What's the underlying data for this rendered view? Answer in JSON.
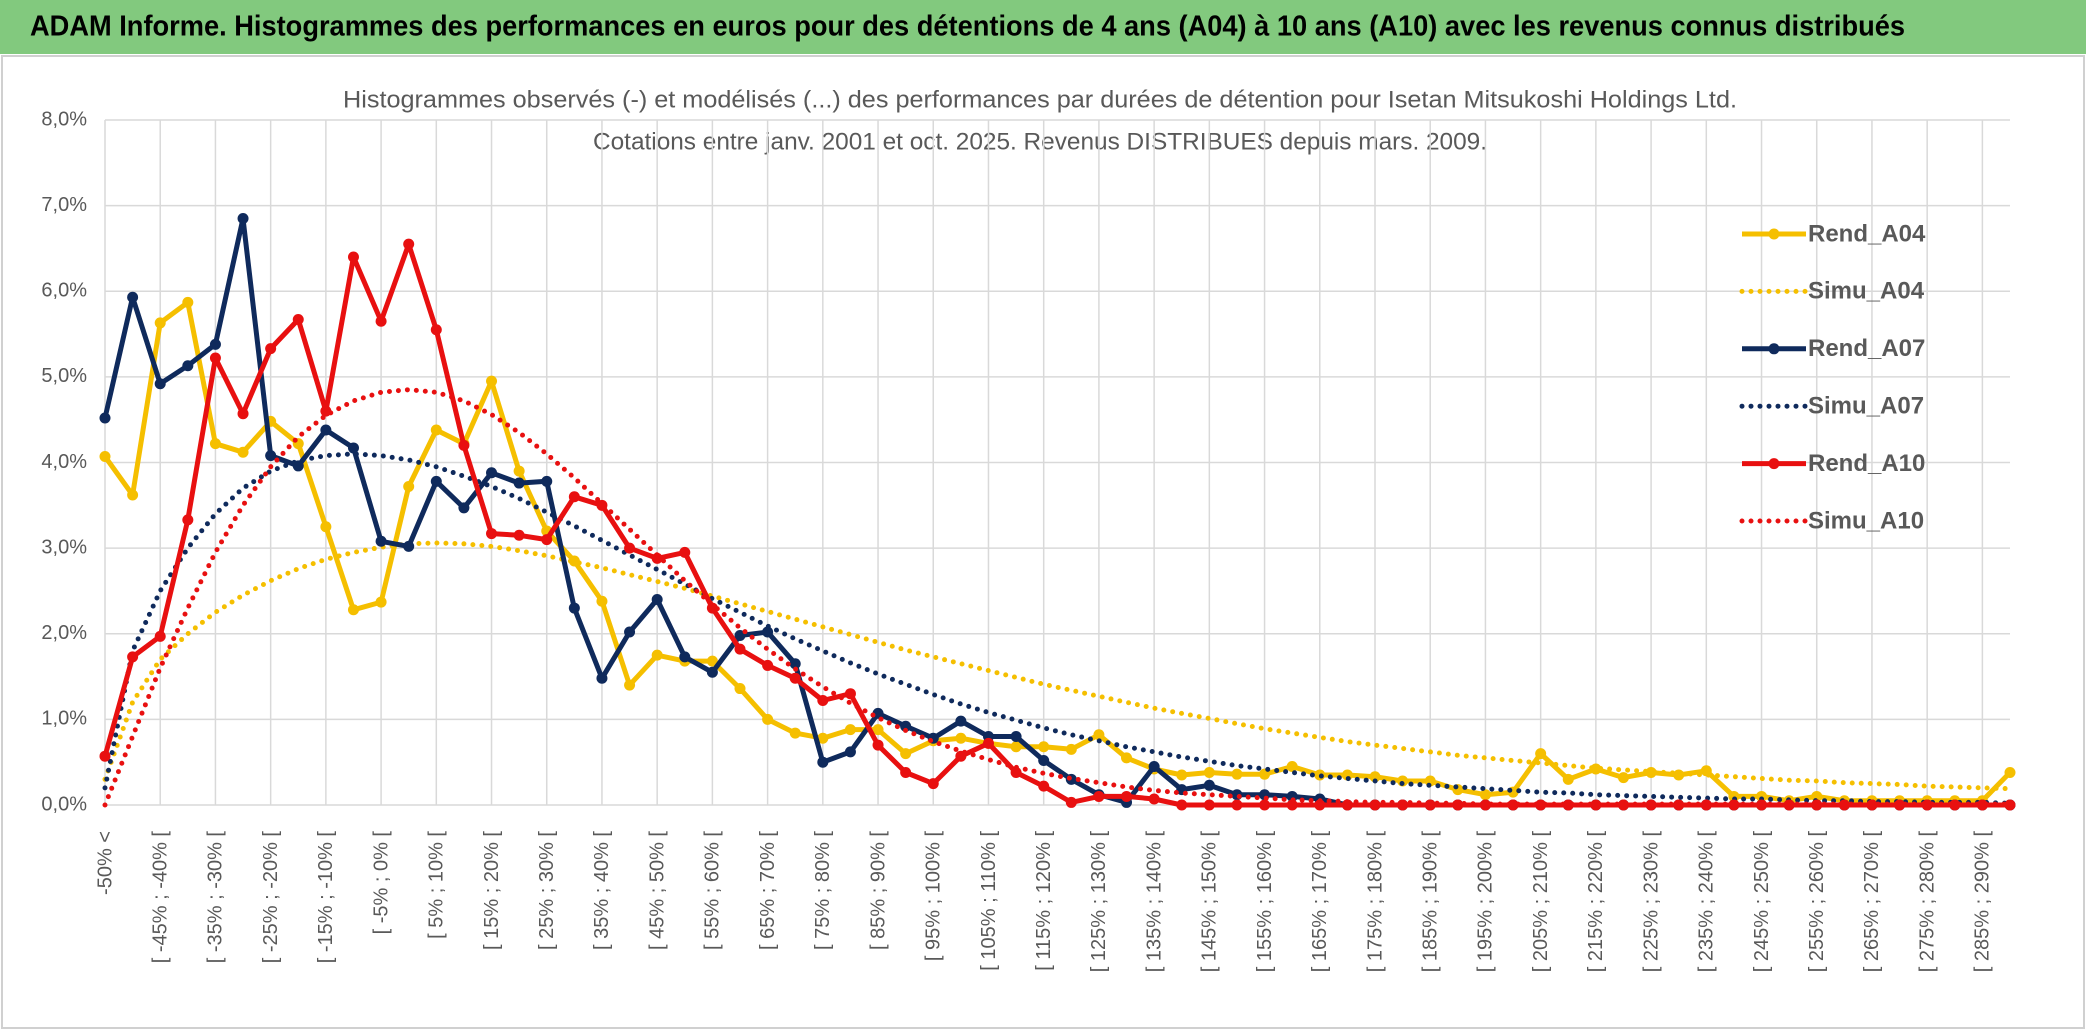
{
  "chart_data": {
    "type": "line",
    "title": "ADAM Informe. Histogrammes des performances en euros pour des détentions de 4 ans (A04) à 10 ans (A10) avec les revenus connus distribués",
    "subtitle": [
      "Histogrammes observés (-) et modélisés (...) des performances par durées de détention pour Isetan Mitsukoshi Holdings Ltd.",
      "Cotations entre janv. 2001 et oct. 2025. Revenus DISTRIBUES depuis mars. 2009."
    ],
    "categories": [
      "-50% <",
      null,
      "[ -45% ; -40% [",
      null,
      "[ -35% ; -30% [",
      null,
      "[ -25% ; -20% [",
      null,
      "[ -15% ; -10% [",
      null,
      "[ -5% ; 0% [",
      null,
      "[ 5% ; 10% [",
      null,
      "[ 15% ; 20% [",
      null,
      "[ 25% ; 30% [",
      null,
      "[ 35% ; 40% [",
      null,
      "[ 45% ; 50% [",
      null,
      "[ 55% ; 60% [",
      null,
      "[ 65% ; 70% [",
      null,
      "[ 75% ; 80% [",
      null,
      "[ 85% ; 90% [",
      null,
      "[ 95% ; 100% [",
      null,
      "[ 105% ; 110% [",
      null,
      "[ 115% ; 120% [",
      null,
      "[ 125% ; 130% [",
      null,
      "[ 135% ; 140% [",
      null,
      "[ 145% ; 150% [",
      null,
      "[ 155% ; 160% [",
      null,
      "[ 165% ; 170% [",
      null,
      "[ 175% ; 180% [",
      null,
      "[ 185% ; 190% [",
      null,
      "[ 195% ; 200% [",
      null,
      "[ 205% ; 210% [",
      null,
      "[ 215% ; 220% [",
      null,
      "[ 225% ; 230% [",
      null,
      "[ 235% ; 240% [",
      null,
      "[ 245% ; 250% [",
      null,
      "[ 255% ; 260% [",
      null,
      "[ 265% ; 270% [",
      null,
      "[ 275% ; 280% [",
      null,
      "[ 285% ; 290% [",
      null
    ],
    "series": [
      {
        "name": "Rend_A04",
        "color": "#f5bf00",
        "line_style": "solid",
        "markers": true,
        "values": [
          4.07,
          3.62,
          5.63,
          5.87,
          4.22,
          4.12,
          4.48,
          4.22,
          3.25,
          2.28,
          2.37,
          3.72,
          4.38,
          4.22,
          4.95,
          3.9,
          3.2,
          2.85,
          2.38,
          1.4,
          1.75,
          1.68,
          1.68,
          1.36,
          1.0,
          0.84,
          0.78,
          0.88,
          0.88,
          0.6,
          0.75,
          0.78,
          0.72,
          0.68,
          0.68,
          0.65,
          0.82,
          0.55,
          0.42,
          0.35,
          0.38,
          0.36,
          0.36,
          0.45,
          0.35,
          0.35,
          0.33,
          0.28,
          0.28,
          0.18,
          0.12,
          0.15,
          0.6,
          0.3,
          0.42,
          0.32,
          0.38,
          0.35,
          0.4,
          0.1,
          0.1,
          0.05,
          0.1,
          0.05,
          0.05,
          0.05,
          0.05,
          0.05,
          0.05,
          0.38
        ]
      },
      {
        "name": "Simu_A04",
        "color": "#f5bf00",
        "line_style": "dotted",
        "markers": false,
        "values": [
          0.3,
          1.2,
          1.7,
          2.0,
          2.25,
          2.45,
          2.62,
          2.76,
          2.87,
          2.95,
          3.01,
          3.05,
          3.06,
          3.05,
          3.02,
          2.97,
          2.91,
          2.84,
          2.77,
          2.69,
          2.61,
          2.53,
          2.44,
          2.35,
          2.26,
          2.17,
          2.08,
          1.99,
          1.9,
          1.81,
          1.73,
          1.65,
          1.57,
          1.49,
          1.41,
          1.34,
          1.27,
          1.2,
          1.13,
          1.07,
          1.01,
          0.95,
          0.89,
          0.84,
          0.79,
          0.74,
          0.7,
          0.66,
          0.62,
          0.58,
          0.55,
          0.52,
          0.49,
          0.46,
          0.43,
          0.41,
          0.39,
          0.37,
          0.35,
          0.33,
          0.31,
          0.29,
          0.28,
          0.26,
          0.25,
          0.24,
          0.22,
          0.21,
          0.2,
          0.19
        ]
      },
      {
        "name": "Rend_A07",
        "color": "#0f2a5c",
        "line_style": "solid",
        "markers": true,
        "values": [
          4.52,
          5.93,
          4.92,
          5.13,
          5.38,
          6.85,
          4.08,
          3.96,
          4.38,
          4.17,
          3.08,
          3.02,
          3.78,
          3.47,
          3.88,
          3.76,
          3.78,
          2.3,
          1.48,
          2.02,
          2.4,
          1.73,
          1.55,
          1.98,
          2.02,
          1.65,
          0.5,
          0.62,
          1.07,
          0.92,
          0.78,
          0.98,
          0.8,
          0.8,
          0.52,
          0.3,
          0.12,
          0.03,
          0.45,
          0.18,
          0.23,
          0.12,
          0.12,
          0.1,
          0.07,
          0,
          0,
          0,
          0,
          0,
          0,
          0,
          0,
          0,
          0,
          0,
          0,
          0,
          0,
          0,
          0,
          0,
          0,
          0,
          0,
          0,
          0,
          0,
          0,
          0
        ]
      },
      {
        "name": "Simu_A07",
        "color": "#0f2a5c",
        "line_style": "dotted",
        "markers": false,
        "values": [
          0.2,
          1.8,
          2.5,
          3.0,
          3.4,
          3.7,
          3.9,
          4.02,
          4.08,
          4.1,
          4.08,
          4.03,
          3.95,
          3.84,
          3.72,
          3.58,
          3.42,
          3.26,
          3.09,
          2.92,
          2.75,
          2.58,
          2.41,
          2.25,
          2.09,
          1.94,
          1.8,
          1.66,
          1.53,
          1.41,
          1.29,
          1.18,
          1.08,
          0.99,
          0.9,
          0.82,
          0.75,
          0.68,
          0.62,
          0.56,
          0.51,
          0.46,
          0.42,
          0.38,
          0.34,
          0.31,
          0.28,
          0.25,
          0.23,
          0.21,
          0.19,
          0.17,
          0.15,
          0.14,
          0.12,
          0.11,
          0.1,
          0.09,
          0.08,
          0.07,
          0.07,
          0.06,
          0.05,
          0.05,
          0.04,
          0.04,
          0.03,
          0.03,
          0.03,
          0.02
        ]
      },
      {
        "name": "Rend_A10",
        "color": "#e81010",
        "line_style": "solid",
        "markers": true,
        "values": [
          0.57,
          1.73,
          1.97,
          3.33,
          5.22,
          4.57,
          5.33,
          5.67,
          4.6,
          6.4,
          5.65,
          6.55,
          5.55,
          4.2,
          3.17,
          3.15,
          3.1,
          3.6,
          3.5,
          3.0,
          2.88,
          2.95,
          2.3,
          1.82,
          1.63,
          1.48,
          1.22,
          1.3,
          0.7,
          0.38,
          0.25,
          0.57,
          0.72,
          0.38,
          0.22,
          0.03,
          0.1,
          0.1,
          0.07,
          0,
          0,
          0,
          0,
          0,
          0,
          0,
          0,
          0,
          0,
          0,
          0,
          0,
          0,
          0,
          0,
          0,
          0,
          0,
          0,
          0,
          0,
          0,
          0,
          0,
          0,
          0,
          0,
          0,
          0,
          0
        ]
      },
      {
        "name": "Simu_A10",
        "color": "#e81010",
        "line_style": "dotted",
        "markers": false,
        "values": [
          0,
          0.8,
          1.6,
          2.3,
          2.95,
          3.5,
          3.95,
          4.3,
          4.55,
          4.72,
          4.82,
          4.85,
          4.82,
          4.72,
          4.56,
          4.35,
          4.1,
          3.82,
          3.52,
          3.22,
          2.92,
          2.62,
          2.34,
          2.07,
          1.82,
          1.59,
          1.38,
          1.19,
          1.02,
          0.87,
          0.74,
          0.63,
          0.53,
          0.44,
          0.37,
          0.31,
          0.26,
          0.21,
          0.17,
          0.14,
          0.12,
          0.1,
          0.08,
          0.06,
          0.05,
          0.04,
          0.03,
          0.03,
          0.02,
          0.02,
          0.01,
          0.01,
          0.01,
          0.01,
          0.01,
          0.01,
          0.01,
          0.01,
          0.01,
          0.01,
          0.01,
          0.01,
          0.01,
          0.01,
          0.01,
          0.01,
          0.01,
          0.01,
          0.01,
          0.01
        ]
      }
    ],
    "ylim": [
      0,
      8
    ],
    "yticks": [
      {
        "value": 0,
        "label": "0,0%"
      },
      {
        "value": 1,
        "label": "1,0%"
      },
      {
        "value": 2,
        "label": "2,0%"
      },
      {
        "value": 3,
        "label": "3,0%"
      },
      {
        "value": 4,
        "label": "4,0%"
      },
      {
        "value": 5,
        "label": "5,0%"
      },
      {
        "value": 6,
        "label": "6,0%"
      },
      {
        "value": 7,
        "label": "7,0%"
      },
      {
        "value": 8,
        "label": "8,0%"
      }
    ],
    "grid": true,
    "legend": "right"
  }
}
